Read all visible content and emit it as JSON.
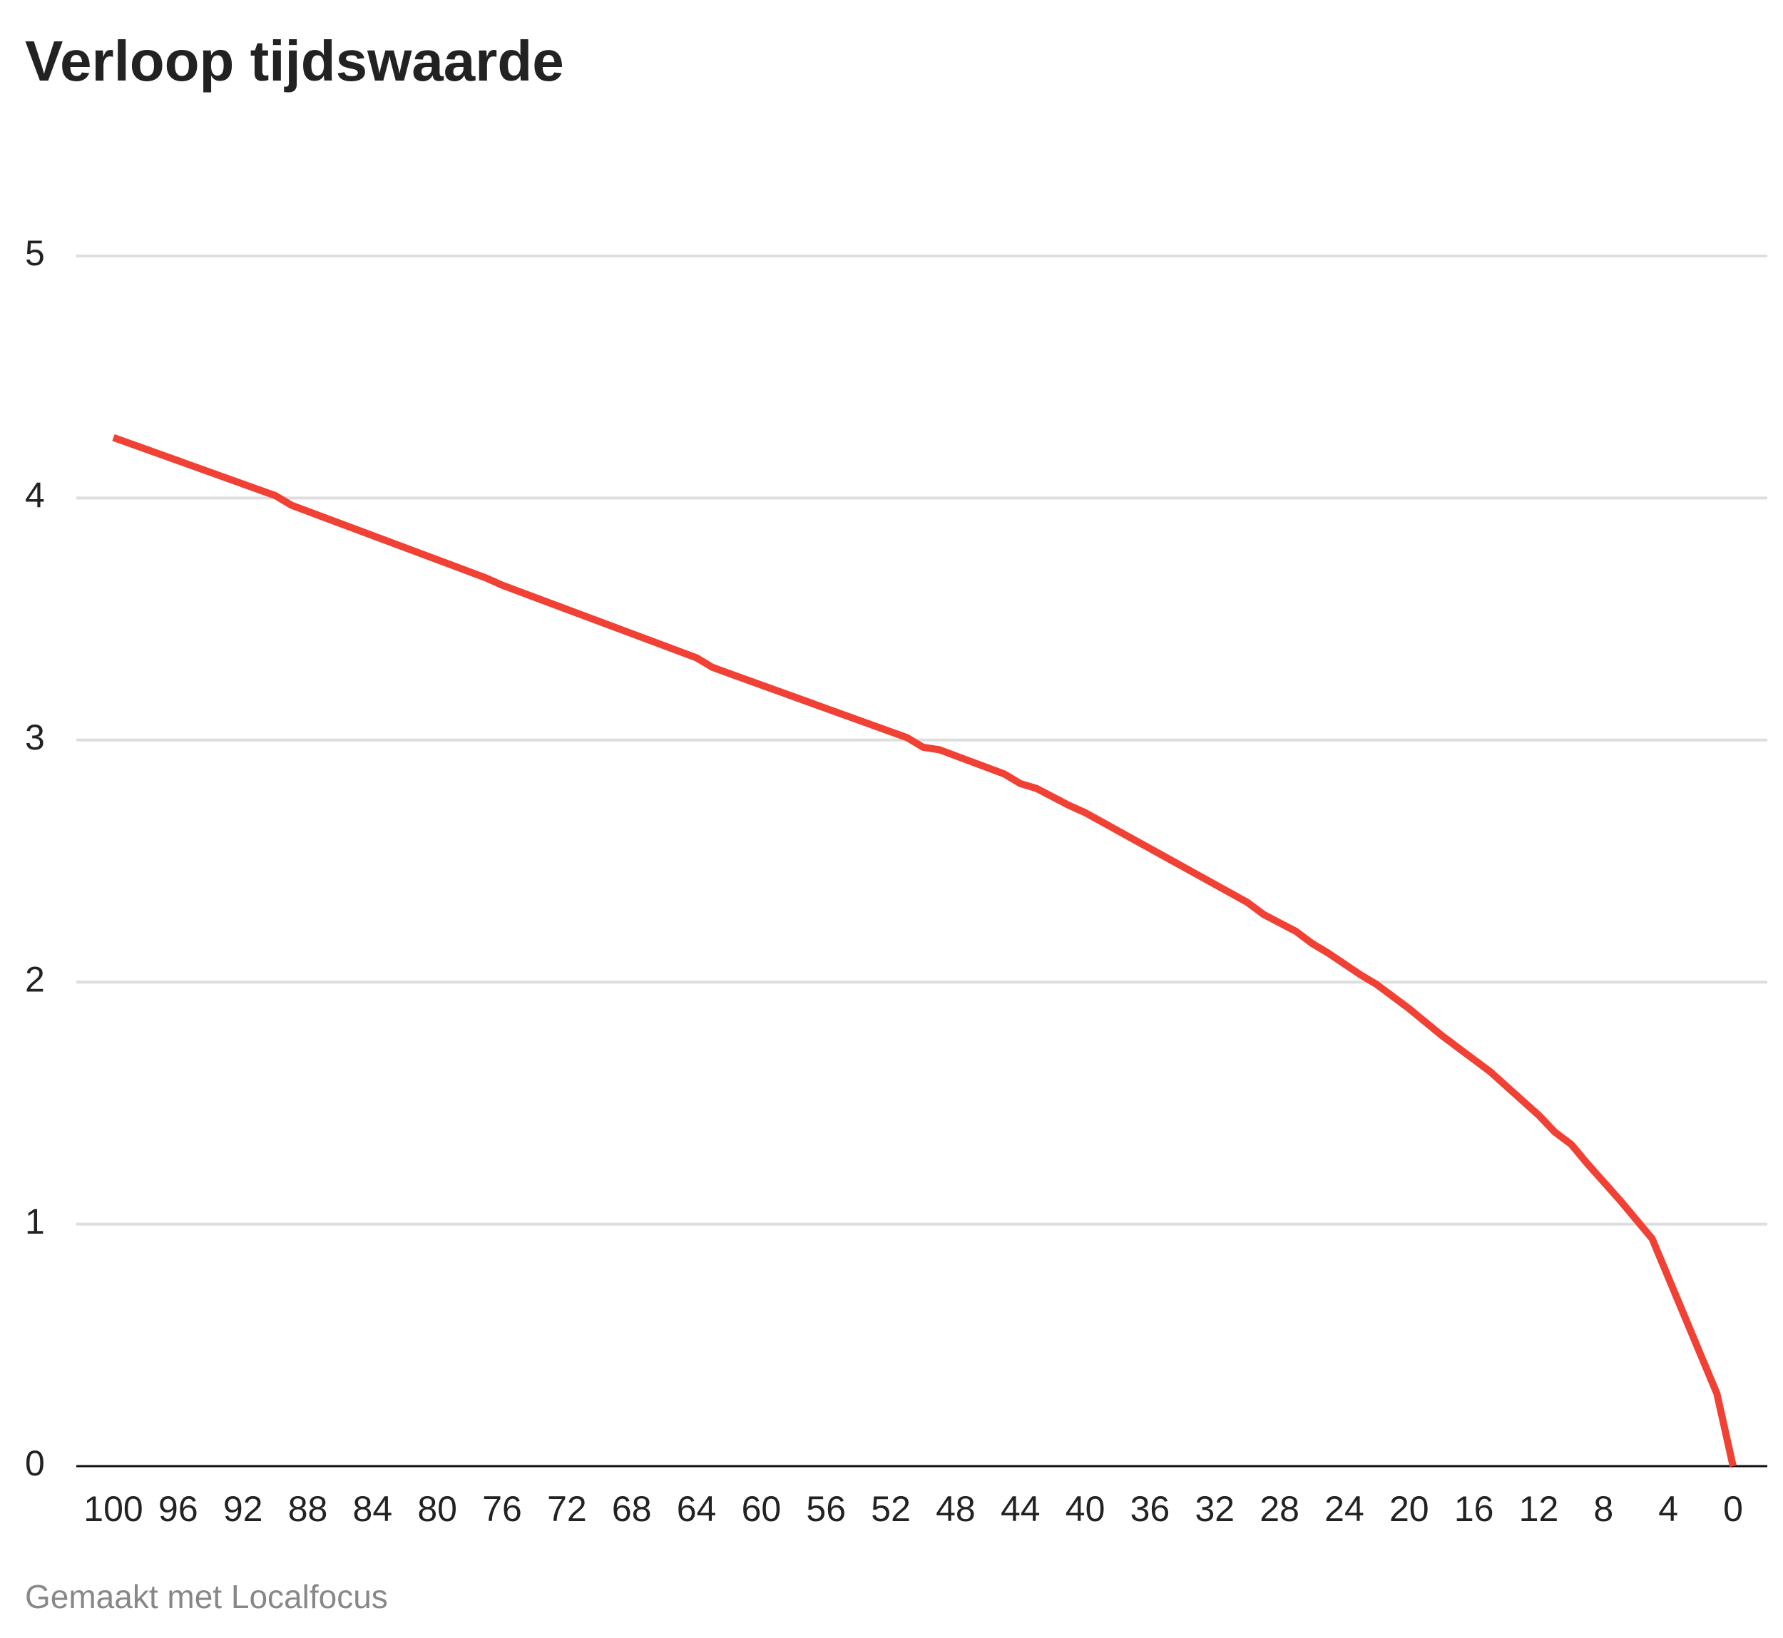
{
  "chart_data": {
    "type": "line",
    "title": "Verloop tijdswaarde",
    "footer": "Gemaakt met Localfocus",
    "x": [
      100,
      90,
      89,
      77,
      76,
      64,
      63,
      51,
      50,
      49,
      45,
      44,
      43,
      41,
      40,
      30,
      29,
      27,
      26,
      25,
      23,
      22,
      20,
      18,
      17,
      15,
      12,
      11,
      10,
      9,
      7,
      6,
      5,
      1,
      0
    ],
    "series": [
      {
        "color": "#f04134",
        "values": [
          4.25,
          4.01,
          3.97,
          3.67,
          3.64,
          3.34,
          3.3,
          3.01,
          2.97,
          2.96,
          2.86,
          2.82,
          2.8,
          2.73,
          2.7,
          2.33,
          2.28,
          2.21,
          2.16,
          2.12,
          2.03,
          1.99,
          1.89,
          1.78,
          1.73,
          1.63,
          1.45,
          1.38,
          1.33,
          1.25,
          1.1,
          1.02,
          0.94,
          0.3,
          0
        ]
      }
    ],
    "xlim": [
      100,
      0
    ],
    "xticks": [
      100,
      96,
      92,
      88,
      84,
      80,
      76,
      72,
      68,
      64,
      60,
      56,
      52,
      48,
      44,
      40,
      36,
      32,
      28,
      24,
      20,
      16,
      12,
      8,
      4,
      0
    ],
    "ylim": [
      0,
      5
    ],
    "yticks": [
      0,
      1,
      2,
      3,
      4,
      5
    ],
    "grid": true
  }
}
